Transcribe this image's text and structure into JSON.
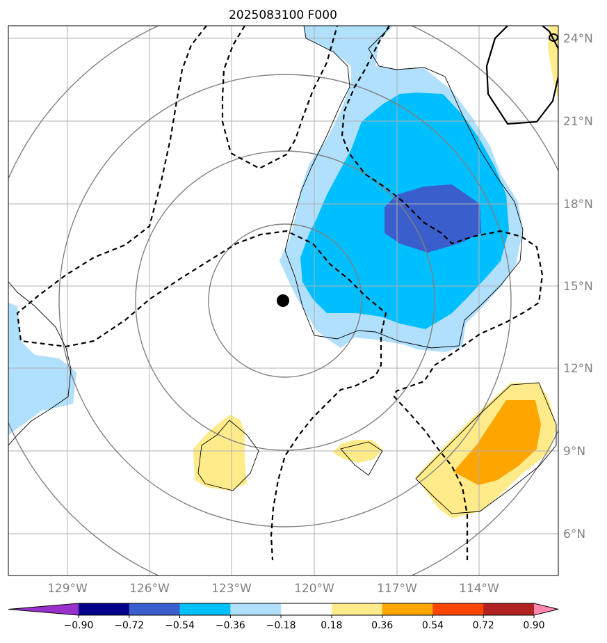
{
  "title": "2025083100 F000",
  "lat_labels": [
    "24°N",
    "21°N",
    "18°N",
    "15°N",
    "12°N",
    "9°N",
    "6°N"
  ],
  "lon_labels": [
    "129°W",
    "126°W",
    "123°W",
    "120°W",
    "117°W",
    "114°W"
  ],
  "extent": {
    "lon_min": -131.2,
    "lon_max": -111.1,
    "lat_min": 4.6,
    "lat_max": 24.4
  },
  "storm_center": {
    "lon": -121.2,
    "lat": 14.5
  },
  "colorbar": {
    "levels": [
      "−0.90",
      "−0.72",
      "−0.54",
      "−0.36",
      "−0.18",
      "0.18",
      "0.36",
      "0.54",
      "0.72",
      "0.90"
    ],
    "colors": [
      "#9932cc",
      "#00008b",
      "#3a5fcd",
      "#00bfff",
      "#b0e0fc",
      "#ffffff",
      "#ffeb8a",
      "#ffa500",
      "#ff4500",
      "#b22222",
      "#ff88b0"
    ]
  }
}
